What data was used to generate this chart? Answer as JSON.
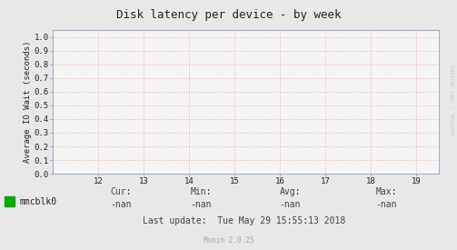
{
  "title": "Disk latency per device - by week",
  "ylabel": "Average IO Wait (seconds)",
  "xlim": [
    11.0,
    19.5
  ],
  "ylim": [
    0.0,
    1.05
  ],
  "xticks": [
    12,
    13,
    14,
    15,
    16,
    17,
    18,
    19
  ],
  "yticks": [
    0.0,
    0.1,
    0.2,
    0.3,
    0.4,
    0.5,
    0.6,
    0.7,
    0.8,
    0.9,
    1.0
  ],
  "grid_color": "#ffaaaa",
  "grid_linestyle": ":",
  "bg_color": "#e8e8e8",
  "plot_bg_color": "#f5f5f5",
  "axis_color": "#aaaacc",
  "title_color": "#222222",
  "legend_label": "mmcblk0",
  "legend_color": "#00aa00",
  "cur_label": "Cur:",
  "cur_val": "-nan",
  "min_label": "Min:",
  "min_val": "-nan",
  "avg_label": "Avg:",
  "avg_val": "-nan",
  "max_label": "Max:",
  "max_val": "-nan",
  "last_update": "Last update:  Tue May 29 15:55:13 2018",
  "munin_label": "Munin 2.0.25",
  "watermark": "RRDTOOL / TOBI OETIKER",
  "font_color": "#222222",
  "stats_color": "#444444",
  "munin_color": "#aaaaaa"
}
